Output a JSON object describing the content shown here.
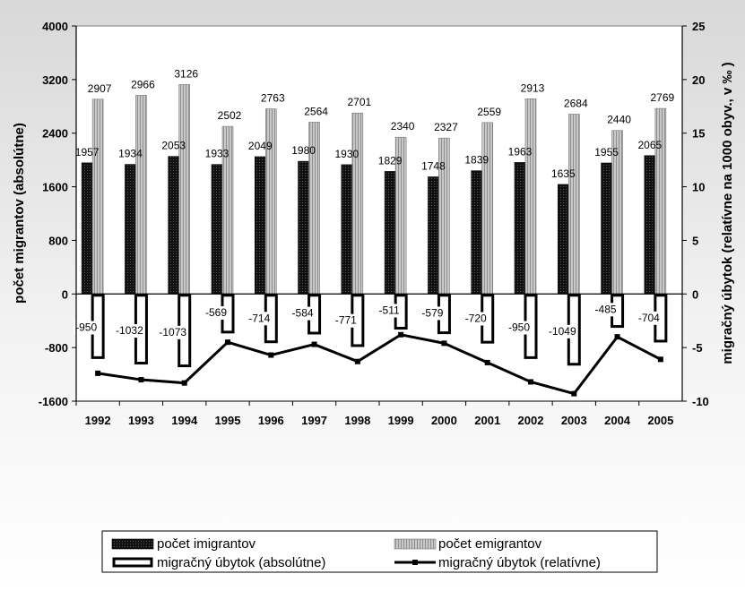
{
  "chart_data": {
    "type": "bar",
    "categories": [
      "1992",
      "1993",
      "1994",
      "1995",
      "1996",
      "1997",
      "1998",
      "1999",
      "2000",
      "2001",
      "2002",
      "2003",
      "2004",
      "2005"
    ],
    "series": [
      {
        "name": "počet imigrantov",
        "type": "bar",
        "axis": "left",
        "color": "#111111",
        "values": [
          1957,
          1934,
          2053,
          1933,
          2049,
          1980,
          1930,
          1829,
          1748,
          1839,
          1963,
          1635,
          1955,
          2065
        ]
      },
      {
        "name": "počet emigrantov",
        "type": "bar",
        "axis": "left",
        "color": "#c8c8c8",
        "values": [
          2907,
          2966,
          3126,
          2502,
          2763,
          2564,
          2701,
          2340,
          2327,
          2559,
          2913,
          2684,
          2440,
          2769
        ]
      },
      {
        "name": "migračný úbytok (absolútne)",
        "type": "bar",
        "axis": "left",
        "color": "#ffffff",
        "values": [
          -950,
          -1032,
          -1073,
          -569,
          -714,
          -584,
          -771,
          -511,
          -579,
          -720,
          -950,
          -1049,
          -485,
          -704
        ]
      },
      {
        "name": "migračný úbytok  (relatívne)",
        "type": "line",
        "axis": "right",
        "color": "#000000",
        "values": [
          -7.4,
          -8.0,
          -8.3,
          -4.5,
          -5.7,
          -4.7,
          -6.3,
          -3.8,
          -4.6,
          -6.4,
          -8.2,
          -9.3,
          -4.0,
          -6.1
        ]
      }
    ],
    "ylabel": "počet migrantov (absolútne)",
    "ylabel_right": "migračný úbytok (relatívne na 1000 obyv., v ‰ )",
    "ylim": [
      -1600,
      4000
    ],
    "ylim_right": [
      -10,
      25
    ],
    "yticks": [
      "4000",
      "3200",
      "2400",
      "1600",
      "800",
      "0",
      "-800",
      "-1600"
    ],
    "yticks_right": [
      "25",
      "20",
      "15",
      "10",
      "5",
      "0",
      "-5",
      "-10"
    ],
    "legend_position": "bottom",
    "grid": false
  }
}
